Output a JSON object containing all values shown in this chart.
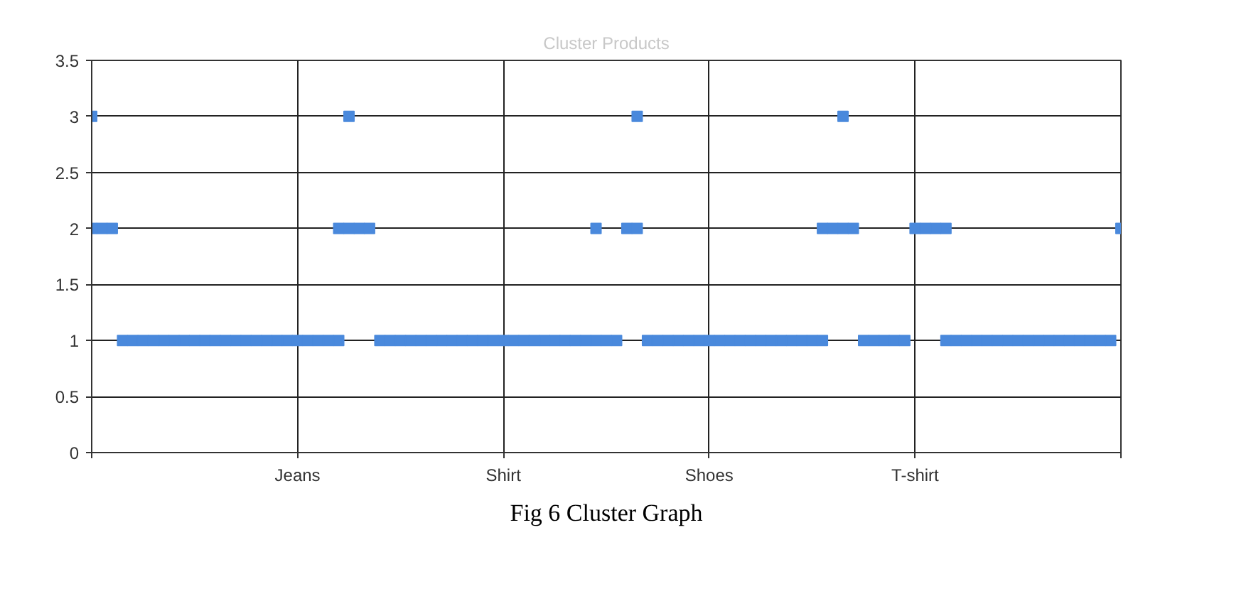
{
  "chart_data": {
    "type": "scatter",
    "title": "Cluster Products",
    "annotations": [
      "Fig 6 Cluster Graph"
    ],
    "categories": [
      null,
      null,
      null,
      null,
      null,
      null,
      null,
      null,
      null,
      null,
      null,
      null,
      null,
      null,
      null,
      null,
      null,
      null,
      null,
      null,
      "Jeans",
      null,
      null,
      null,
      null,
      null,
      null,
      null,
      null,
      null,
      null,
      null,
      null,
      null,
      null,
      null,
      null,
      null,
      null,
      null,
      "Shirt",
      null,
      null,
      null,
      null,
      null,
      null,
      null,
      null,
      null,
      null,
      null,
      null,
      null,
      null,
      null,
      null,
      null,
      null,
      null,
      "Shoes",
      null,
      null,
      null,
      null,
      null,
      null,
      null,
      null,
      null,
      null,
      null,
      null,
      null,
      null,
      null,
      null,
      null,
      null,
      null,
      "T-shirt",
      null,
      null,
      null,
      null,
      null,
      null,
      null,
      null,
      null,
      null,
      null,
      null,
      null,
      null,
      null,
      null,
      null,
      null,
      null,
      null
    ],
    "ylim": [
      0,
      3.5
    ],
    "yticks": [
      0,
      0.5,
      1,
      1.5,
      2,
      2.5,
      3,
      3.5
    ],
    "grid": true,
    "marker": "square",
    "series": [
      {
        "color": "#4a89dc",
        "values": [
          null,
          null,
          null,
          1,
          1,
          1,
          1,
          1,
          1,
          1,
          1,
          1,
          1,
          1,
          1,
          1,
          1,
          1,
          1,
          1,
          1,
          1,
          1,
          1,
          1,
          null,
          null,
          null,
          1,
          1,
          1,
          1,
          1,
          1,
          1,
          1,
          1,
          1,
          1,
          1,
          1,
          1,
          1,
          1,
          1,
          1,
          1,
          1,
          1,
          1,
          1,
          1,
          null,
          null,
          1,
          1,
          1,
          1,
          1,
          1,
          1,
          1,
          1,
          1,
          1,
          1,
          1,
          1,
          1,
          1,
          1,
          1,
          null,
          null,
          null,
          1,
          1,
          1,
          1,
          1,
          null,
          null,
          null,
          1,
          1,
          1,
          1,
          1,
          1,
          1,
          1,
          1,
          1,
          1,
          1,
          1,
          1,
          1,
          1,
          1,
          null
        ]
      },
      {
        "color": "#4a89dc",
        "values": [
          2,
          2,
          2,
          null,
          null,
          null,
          null,
          null,
          null,
          null,
          null,
          null,
          null,
          null,
          null,
          null,
          null,
          null,
          null,
          null,
          null,
          null,
          null,
          null,
          2,
          2,
          2,
          2,
          null,
          null,
          null,
          null,
          null,
          null,
          null,
          null,
          null,
          null,
          null,
          null,
          null,
          null,
          null,
          null,
          null,
          null,
          null,
          null,
          null,
          2,
          null,
          null,
          2,
          2,
          null,
          null,
          null,
          null,
          null,
          null,
          null,
          null,
          null,
          null,
          null,
          null,
          null,
          null,
          null,
          null,
          null,
          2,
          2,
          2,
          2,
          null,
          null,
          null,
          null,
          null,
          2,
          2,
          2,
          2,
          null,
          null,
          null,
          null,
          null,
          null,
          null,
          null,
          null,
          null,
          null,
          null,
          null,
          null,
          null,
          null,
          2
        ]
      },
      {
        "color": "#4a89dc",
        "values": [
          3,
          null,
          null,
          null,
          null,
          null,
          null,
          null,
          null,
          null,
          null,
          null,
          null,
          null,
          null,
          null,
          null,
          null,
          null,
          null,
          null,
          null,
          null,
          null,
          null,
          3,
          null,
          null,
          null,
          null,
          null,
          null,
          null,
          null,
          null,
          null,
          null,
          null,
          null,
          null,
          null,
          null,
          null,
          null,
          null,
          null,
          null,
          null,
          null,
          null,
          null,
          null,
          null,
          3,
          null,
          null,
          null,
          null,
          null,
          null,
          null,
          null,
          null,
          null,
          null,
          null,
          null,
          null,
          null,
          null,
          null,
          null,
          null,
          3,
          null,
          null,
          null,
          null,
          null,
          null,
          null,
          null,
          null,
          null,
          null,
          null,
          null,
          null,
          null,
          null,
          null,
          null,
          null,
          null,
          null,
          null,
          null,
          null,
          null,
          null,
          null
        ]
      }
    ]
  }
}
